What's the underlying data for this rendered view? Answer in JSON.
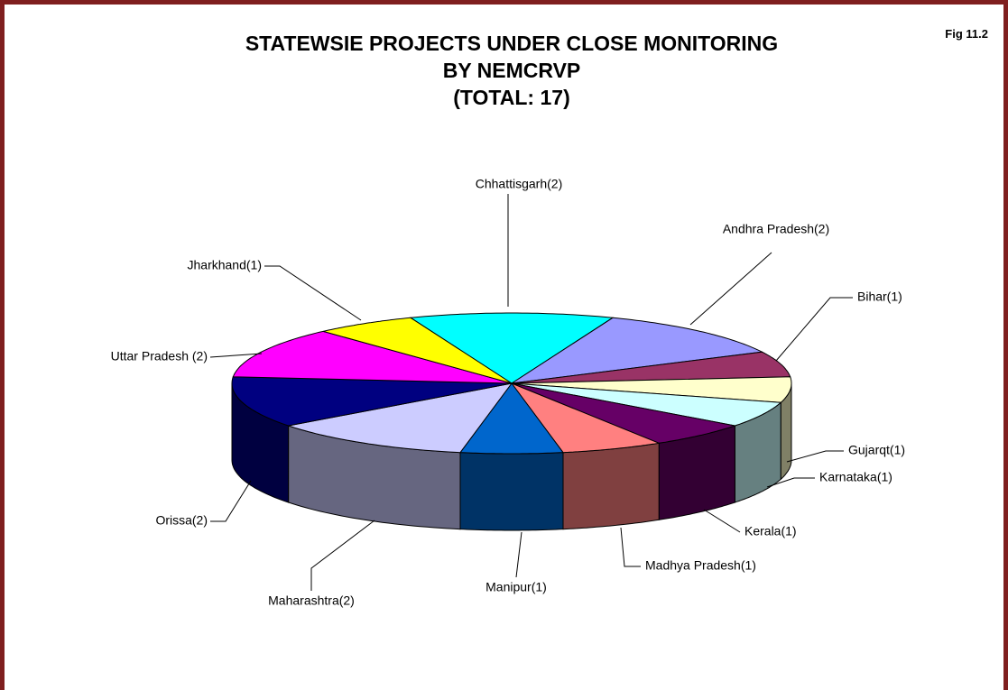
{
  "chart_data": {
    "type": "pie3d",
    "title": [
      "STATEWSIE PROJECTS UNDER CLOSE MONITORING",
      "BY NEMCRVP",
      "(TOTAL: 17)"
    ],
    "annotation": "Fig 11.2",
    "categories": [
      "Chhattisgarh(2)",
      "Andhra Pradesh(2)",
      "Bihar(1)",
      "Gujarqt(1)",
      "Karnataka(1)",
      "Kerala(1)",
      "Madhya Pradesh(1)",
      "Manipur(1)",
      "Maharashtra(2)",
      "Orissa(2)",
      "Uttar Pradesh (2)",
      "Jharkhand(1)"
    ],
    "values": [
      2,
      2,
      1,
      1,
      1,
      1,
      1,
      1,
      2,
      2,
      2,
      1
    ],
    "colors": [
      "#00ffff",
      "#9999ff",
      "#993366",
      "#ffffcc",
      "#ccffff",
      "#660066",
      "#ff8080",
      "#0066cc",
      "#ccccff",
      "#000080",
      "#ff00ff",
      "#ffff00"
    ]
  }
}
